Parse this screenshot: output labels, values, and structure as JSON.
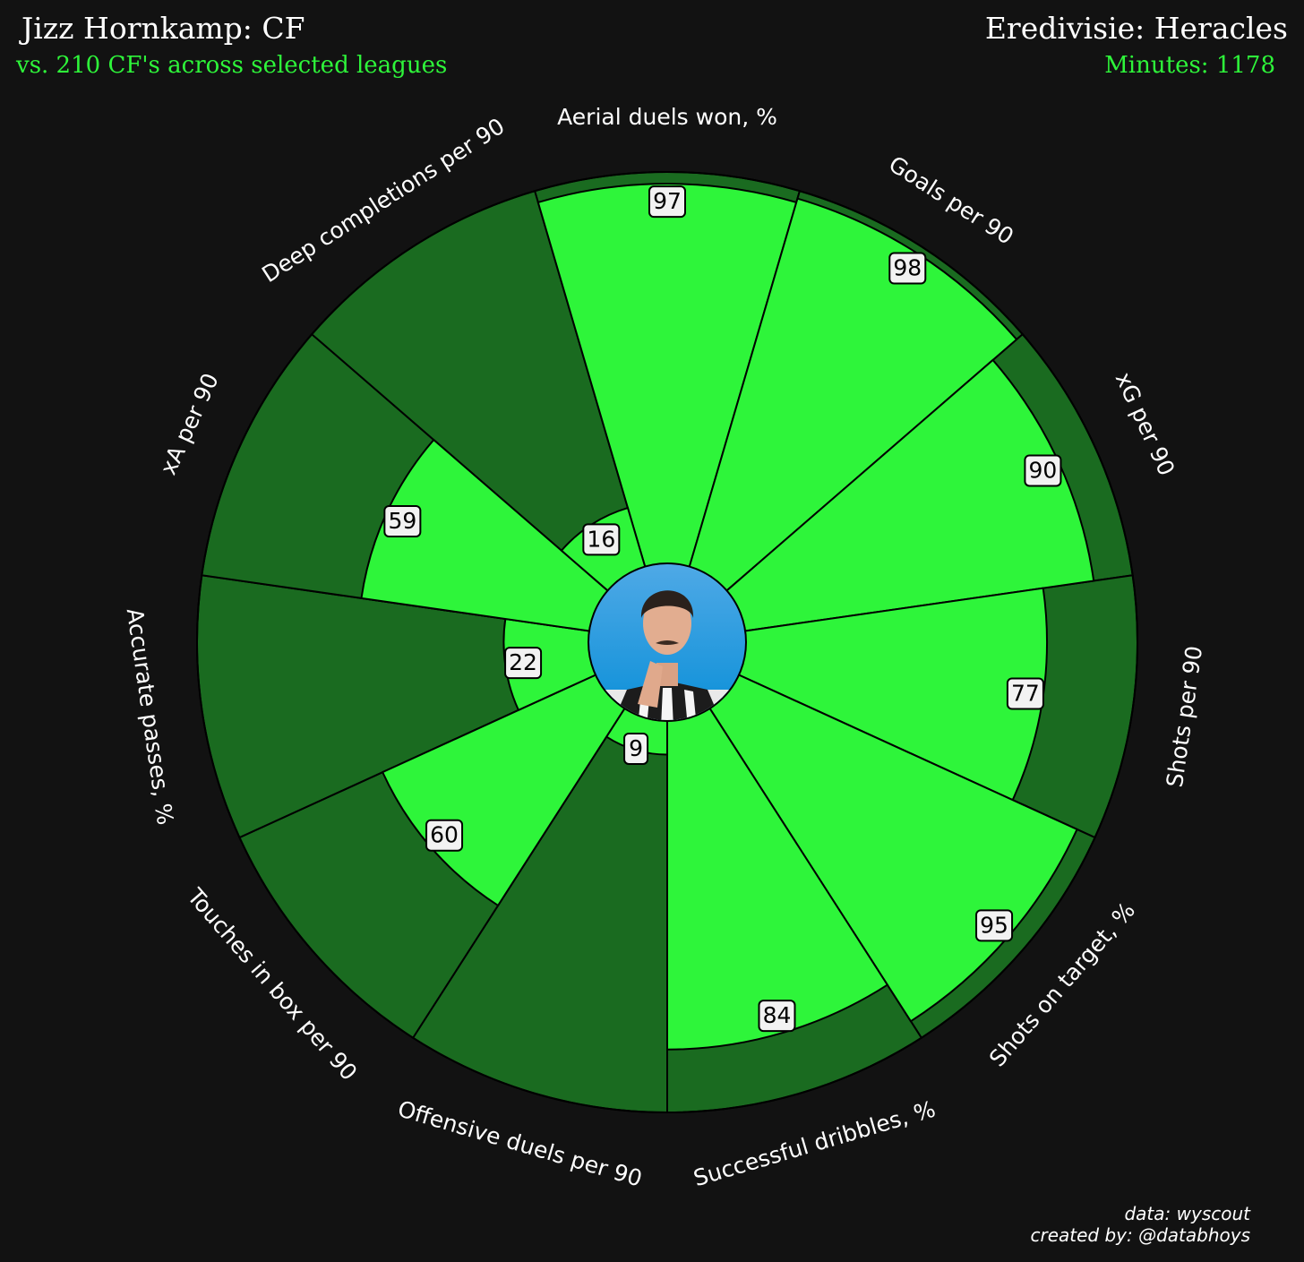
{
  "header": {
    "player_title": "Jizz Hornkamp: CF",
    "comparison": "vs. 210 CF's across selected leagues",
    "league_team": "Eredivisie: Heracles",
    "minutes": "Minutes: 1178"
  },
  "footer": {
    "data_source": "data: wyscout",
    "created_by": "created by: @databhoys"
  },
  "colors": {
    "background": "#121212",
    "bar_fill": "#2ef53a",
    "background_slice": "#1a6b20",
    "outline": "#000000",
    "label_box": "#f2f2f2"
  },
  "center_image": "player-photo",
  "chart_data": {
    "type": "radial-bar",
    "title": "",
    "scale": [
      0,
      100
    ],
    "categories": [
      "Aerial duels won, %",
      "Goals per 90",
      "xG per 90",
      "Shots per 90",
      "Shots on target, %",
      "Successful dribbles, %",
      "Offensive duels per 90",
      "Touches in box per 90",
      "Accurate passes, %",
      "xA per 90",
      "Deep completions per 90"
    ],
    "values": [
      97,
      98,
      90,
      77,
      95,
      84,
      9,
      60,
      22,
      59,
      16
    ],
    "value_labels": [
      "97",
      "98",
      "90",
      "77",
      "95",
      "84",
      "9",
      "60",
      "22",
      "59",
      "16"
    ]
  }
}
